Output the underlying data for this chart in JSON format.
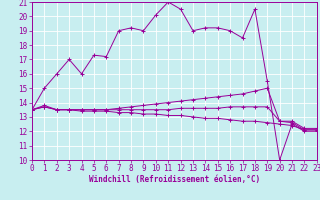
{
  "xlabel": "Windchill (Refroidissement éolien,°C)",
  "bg_color": "#c8eef0",
  "line_color": "#990099",
  "grid_color": "#ffffff",
  "xmin": 0,
  "xmax": 23,
  "ymin": 10,
  "ymax": 21,
  "series": [
    {
      "x": [
        0,
        1,
        2,
        3,
        4,
        5,
        6,
        7,
        8,
        9,
        10,
        11,
        12,
        13,
        14,
        15,
        16,
        17,
        18,
        19,
        20,
        21,
        22,
        23
      ],
      "y": [
        13.5,
        15.0,
        16.0,
        17.0,
        16.0,
        17.3,
        17.2,
        19.0,
        19.2,
        19.0,
        20.1,
        21.0,
        20.5,
        19.0,
        19.2,
        19.2,
        19.0,
        18.5,
        20.5,
        15.5,
        10.0,
        12.5,
        12.0,
        12.0
      ]
    },
    {
      "x": [
        0,
        1,
        2,
        3,
        4,
        5,
        6,
        7,
        8,
        9,
        10,
        11,
        12,
        13,
        14,
        15,
        16,
        17,
        18,
        19,
        20,
        21,
        22,
        23
      ],
      "y": [
        13.5,
        13.8,
        13.5,
        13.5,
        13.5,
        13.5,
        13.5,
        13.6,
        13.7,
        13.8,
        13.9,
        14.0,
        14.1,
        14.2,
        14.3,
        14.4,
        14.5,
        14.6,
        14.8,
        15.0,
        12.7,
        12.7,
        12.2,
        12.2
      ]
    },
    {
      "x": [
        0,
        1,
        2,
        3,
        4,
        5,
        6,
        7,
        8,
        9,
        10,
        11,
        12,
        13,
        14,
        15,
        16,
        17,
        18,
        19,
        20,
        21,
        22,
        23
      ],
      "y": [
        13.5,
        13.7,
        13.5,
        13.5,
        13.5,
        13.5,
        13.5,
        13.5,
        13.5,
        13.5,
        13.5,
        13.5,
        13.6,
        13.6,
        13.6,
        13.6,
        13.7,
        13.7,
        13.7,
        13.7,
        12.7,
        12.6,
        12.1,
        12.1
      ]
    },
    {
      "x": [
        0,
        1,
        2,
        3,
        4,
        5,
        6,
        7,
        8,
        9,
        10,
        11,
        12,
        13,
        14,
        15,
        16,
        17,
        18,
        19,
        20,
        21,
        22,
        23
      ],
      "y": [
        13.5,
        13.7,
        13.5,
        13.5,
        13.4,
        13.4,
        13.4,
        13.3,
        13.3,
        13.2,
        13.2,
        13.1,
        13.1,
        13.0,
        12.9,
        12.9,
        12.8,
        12.7,
        12.7,
        12.6,
        12.5,
        12.4,
        12.1,
        12.1
      ]
    }
  ],
  "xticks": [
    0,
    1,
    2,
    3,
    4,
    5,
    6,
    7,
    8,
    9,
    10,
    11,
    12,
    13,
    14,
    15,
    16,
    17,
    18,
    19,
    20,
    21,
    22,
    23
  ],
  "yticks": [
    10,
    11,
    12,
    13,
    14,
    15,
    16,
    17,
    18,
    19,
    20,
    21
  ],
  "tick_fontsize": 5.5,
  "xlabel_fontsize": 5.5
}
